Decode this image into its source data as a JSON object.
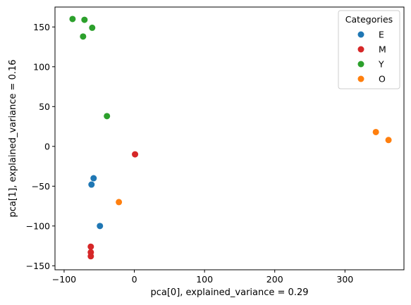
{
  "chart_data": {
    "type": "scatter",
    "xlabel": "pca[0], explained_variance = 0.29",
    "ylabel": "pca[1], explained_variance = 0.16",
    "xlim": [
      -113,
      384
    ],
    "ylim": [
      -155,
      175
    ],
    "xticks": [
      -100,
      0,
      100,
      200,
      300
    ],
    "yticks": [
      -150,
      -100,
      -50,
      0,
      50,
      100,
      150
    ],
    "grid": false,
    "legend": {
      "title": "Categories",
      "placement": "top-right"
    },
    "series": [
      {
        "name": "E",
        "color": "#1f77b4",
        "points": [
          [
            -58,
            -40
          ],
          [
            -61,
            -48
          ],
          [
            -49,
            -100
          ]
        ]
      },
      {
        "name": "M",
        "color": "#d62728",
        "points": [
          [
            1,
            -10
          ],
          [
            -62,
            -126
          ],
          [
            -62,
            -133
          ],
          [
            -62,
            -138
          ]
        ]
      },
      {
        "name": "Y",
        "color": "#2ca02c",
        "points": [
          [
            -88,
            160
          ],
          [
            -71,
            159
          ],
          [
            -60,
            149
          ],
          [
            -73,
            138
          ],
          [
            -39,
            38
          ]
        ]
      },
      {
        "name": "O",
        "color": "#ff7f0e",
        "points": [
          [
            344,
            18
          ],
          [
            362,
            8
          ],
          [
            -22,
            -70
          ]
        ]
      }
    ]
  }
}
